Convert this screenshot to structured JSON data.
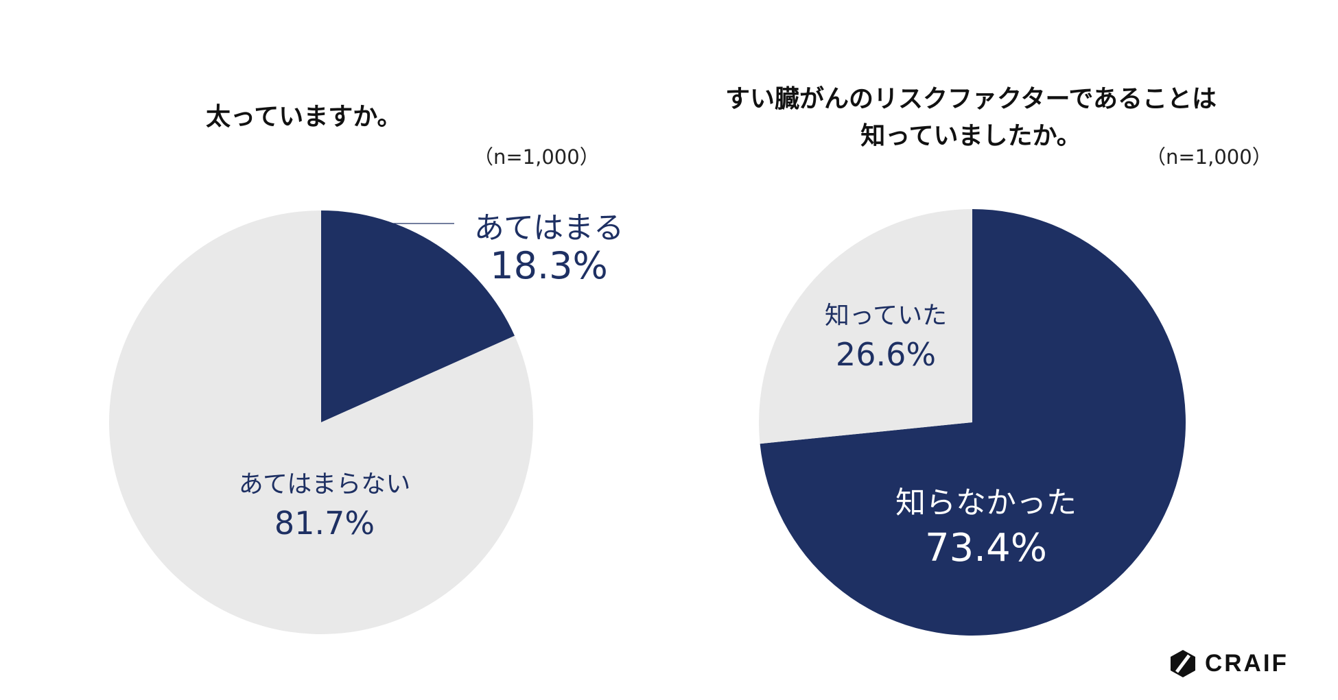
{
  "colors": {
    "navy": "#1e3063",
    "light": "#e9e9e9",
    "navy_text": "#1e3063",
    "white_text": "#ffffff"
  },
  "chart_data": [
    {
      "type": "pie",
      "title": "太っていますか。",
      "n_label": "（n=1,000）",
      "slices": [
        {
          "label": "あてはまる",
          "value": 18.3,
          "display": "18.3%",
          "color": "#1e3063"
        },
        {
          "label": "あてはまらない",
          "value": 81.7,
          "display": "81.7%",
          "color": "#e9e9e9"
        }
      ]
    },
    {
      "type": "pie",
      "title_lines": [
        "すい臓がんのリスクファクターであることは",
        "知っていましたか。"
      ],
      "n_label": "（n=1,000）",
      "slices": [
        {
          "label": "知らなかった",
          "value": 73.4,
          "display": "73.4%",
          "color": "#1e3063"
        },
        {
          "label": "知っていた",
          "value": 26.6,
          "display": "26.6%",
          "color": "#e9e9e9"
        }
      ]
    }
  ],
  "logo": {
    "text": "CRAIF",
    "icon": "hexagon-slash-icon"
  }
}
